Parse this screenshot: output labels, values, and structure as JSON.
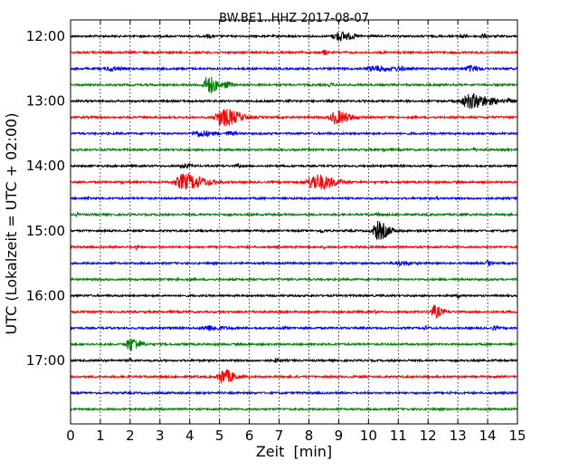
{
  "chart_data": {
    "type": "line",
    "title": "BW.BE1..HHZ 2017-08-07",
    "xlabel": "Zeit  [min]",
    "ylabel": "UTC (Lokalzeit = UTC + 02:00)",
    "xlim": [
      0,
      15
    ],
    "x_ticks": [
      0,
      1,
      2,
      3,
      4,
      5,
      6,
      7,
      8,
      9,
      10,
      11,
      12,
      13,
      14,
      15
    ],
    "x_tick_labels": [
      "0",
      "1",
      "2",
      "3",
      "4",
      "5",
      "6",
      "7",
      "8",
      "9",
      "10",
      "11",
      "12",
      "13",
      "14",
      "15"
    ],
    "y_tick_labels": [
      "12:00",
      "13:00",
      "14:00",
      "15:00",
      "16:00",
      "17:00"
    ],
    "y_tick_rows": [
      0,
      4,
      8,
      12,
      16,
      20
    ],
    "grid": true,
    "colors": [
      "#000000",
      "#ff0000",
      "#0000ff",
      "#008000"
    ],
    "traces": [
      {
        "start": "12:00",
        "events": [
          [
            9.0,
            0.55,
            0.35
          ],
          [
            4.6,
            0.18,
            0.1
          ],
          [
            13.1,
            0.22,
            0.1
          ],
          [
            13.8,
            0.2,
            0.1
          ]
        ]
      },
      {
        "start": "12:15",
        "events": [
          [
            8.5,
            0.3,
            0.08
          ],
          [
            1.1,
            0.12,
            0.05
          ],
          [
            10.5,
            0.12,
            0.05
          ]
        ]
      },
      {
        "start": "12:30",
        "events": [
          [
            1.3,
            0.25,
            0.25
          ],
          [
            10.2,
            0.3,
            0.5
          ],
          [
            11.0,
            0.18,
            0.15
          ],
          [
            13.4,
            0.35,
            0.25
          ]
        ]
      },
      {
        "start": "12:45",
        "events": [
          [
            4.6,
            1.1,
            0.25
          ],
          [
            5.2,
            0.3,
            0.2
          ],
          [
            8.7,
            0.15,
            0.1
          ]
        ]
      },
      {
        "start": "13:00",
        "events": [
          [
            13.4,
            0.85,
            0.55
          ],
          [
            14.7,
            0.25,
            0.08
          ],
          [
            7.3,
            0.2,
            0.05
          ],
          [
            4.0,
            0.15,
            0.05
          ]
        ]
      },
      {
        "start": "13:15",
        "events": [
          [
            5.1,
            1.05,
            0.45
          ],
          [
            8.9,
            0.8,
            0.35
          ]
        ]
      },
      {
        "start": "13:30",
        "events": [
          [
            4.3,
            0.35,
            0.35
          ],
          [
            5.3,
            0.22,
            0.15
          ]
        ]
      },
      {
        "start": "13:45",
        "events": [
          [
            10.5,
            0.15,
            0.08
          ],
          [
            13.5,
            0.15,
            0.08
          ]
        ]
      },
      {
        "start": "14:00",
        "events": [
          [
            3.8,
            0.2,
            0.2
          ],
          [
            5.6,
            0.12,
            0.1
          ]
        ]
      },
      {
        "start": "14:15",
        "events": [
          [
            3.8,
            0.95,
            0.55
          ],
          [
            8.2,
            0.95,
            0.5
          ],
          [
            1.7,
            0.15,
            0.05
          ]
        ]
      },
      {
        "start": "14:30",
        "events": [
          [
            0.6,
            0.2,
            0.05
          ],
          [
            12.3,
            0.15,
            0.05
          ]
        ]
      },
      {
        "start": "14:45",
        "events": [
          [
            0.2,
            0.2,
            0.05
          ],
          [
            10.3,
            0.15,
            0.1
          ]
        ]
      },
      {
        "start": "15:00",
        "events": [
          [
            10.3,
            1.1,
            0.3
          ],
          [
            8.4,
            0.2,
            0.08
          ]
        ]
      },
      {
        "start": "15:15",
        "events": [
          [
            2.2,
            0.2,
            0.05
          ],
          [
            8.5,
            0.12,
            0.05
          ]
        ]
      },
      {
        "start": "15:30",
        "events": [
          [
            11.0,
            0.2,
            0.35
          ],
          [
            14.0,
            0.3,
            0.08
          ]
        ]
      },
      {
        "start": "15:45",
        "events": [
          [
            3.6,
            0.15,
            0.05
          ]
        ]
      },
      {
        "start": "16:00",
        "events": [
          [
            13.0,
            0.25,
            0.05
          ]
        ]
      },
      {
        "start": "16:15",
        "events": [
          [
            12.2,
            0.75,
            0.2
          ],
          [
            10.2,
            0.12,
            0.05
          ]
        ]
      },
      {
        "start": "16:30",
        "events": [
          [
            4.6,
            0.3,
            0.4
          ],
          [
            7.1,
            0.15,
            0.1
          ],
          [
            11.9,
            0.2,
            0.08
          ],
          [
            14.2,
            0.25,
            0.08
          ]
        ]
      },
      {
        "start": "16:45",
        "events": [
          [
            2.0,
            0.85,
            0.25
          ]
        ]
      },
      {
        "start": "17:00",
        "events": [
          [
            2.0,
            0.2,
            0.05
          ],
          [
            6.9,
            0.25,
            0.1
          ]
        ]
      },
      {
        "start": "17:15",
        "events": [
          [
            5.1,
            0.85,
            0.3
          ],
          [
            9.8,
            0.12,
            0.05
          ]
        ]
      },
      {
        "start": "17:30",
        "events": [
          [
            12.7,
            0.15,
            0.05
          ]
        ]
      },
      {
        "start": "17:45",
        "events": []
      }
    ]
  }
}
